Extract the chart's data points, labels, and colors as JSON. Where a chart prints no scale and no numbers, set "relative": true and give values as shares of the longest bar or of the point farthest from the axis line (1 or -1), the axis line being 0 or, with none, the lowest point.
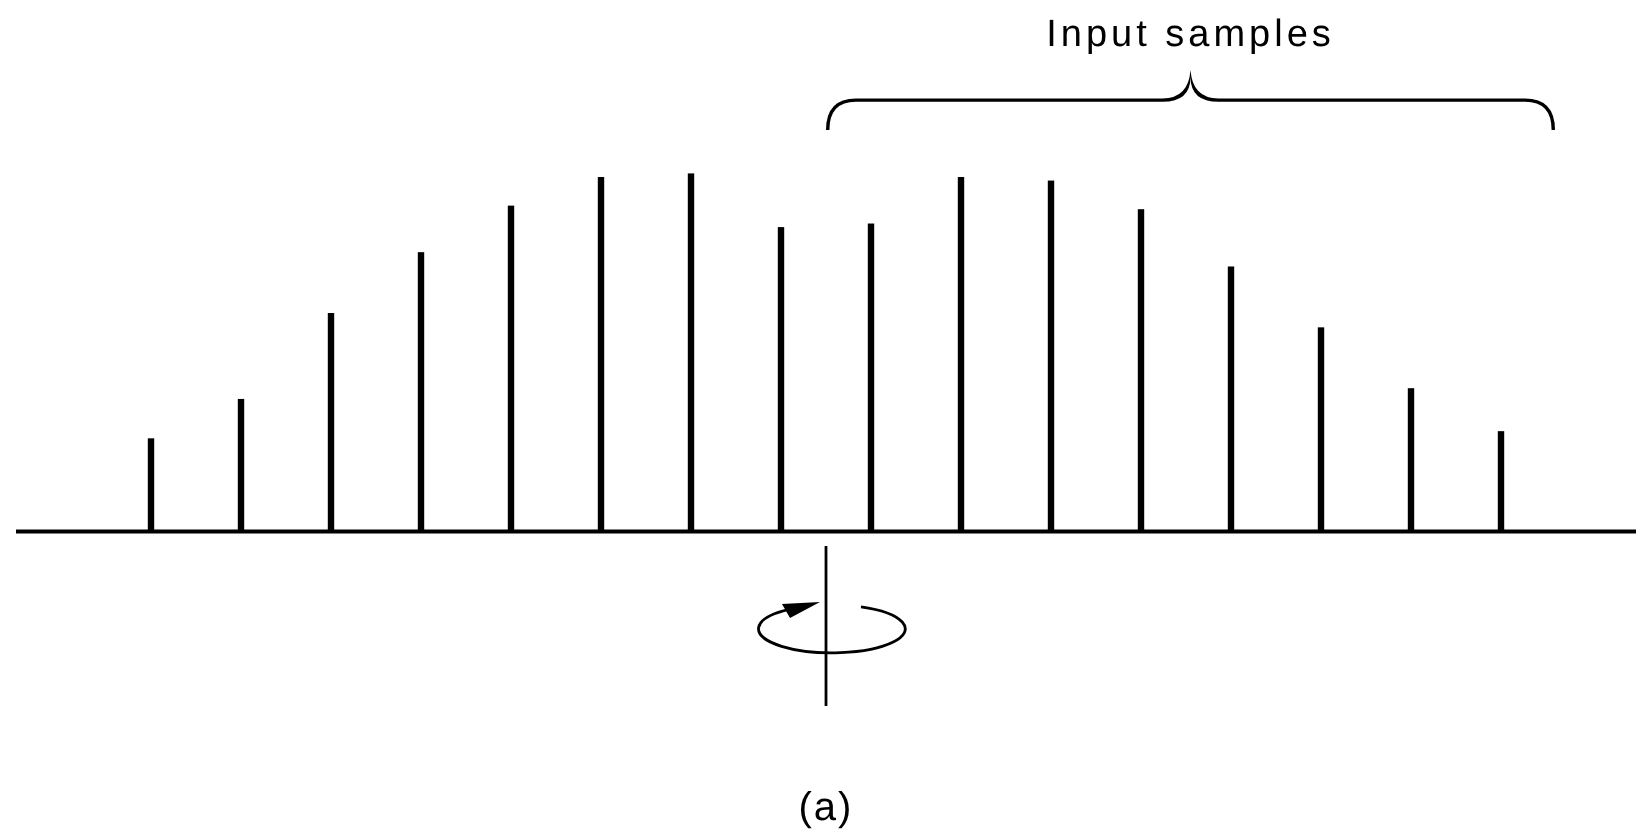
{
  "chart_data": {
    "type": "bar",
    "relative": true,
    "color": "#000000",
    "categories": [
      null,
      null,
      null,
      null,
      null,
      null,
      null,
      null,
      null,
      null,
      null,
      null,
      null,
      null,
      null,
      null
    ],
    "values": [
      0.26,
      0.37,
      0.61,
      0.78,
      0.91,
      0.99,
      1,
      0.85,
      0.86,
      0.99,
      0.98,
      0.9,
      0.74,
      0.57,
      0.4,
      0.28
    ],
    "annotations": [
      "Input samples",
      "(a)"
    ]
  }
}
